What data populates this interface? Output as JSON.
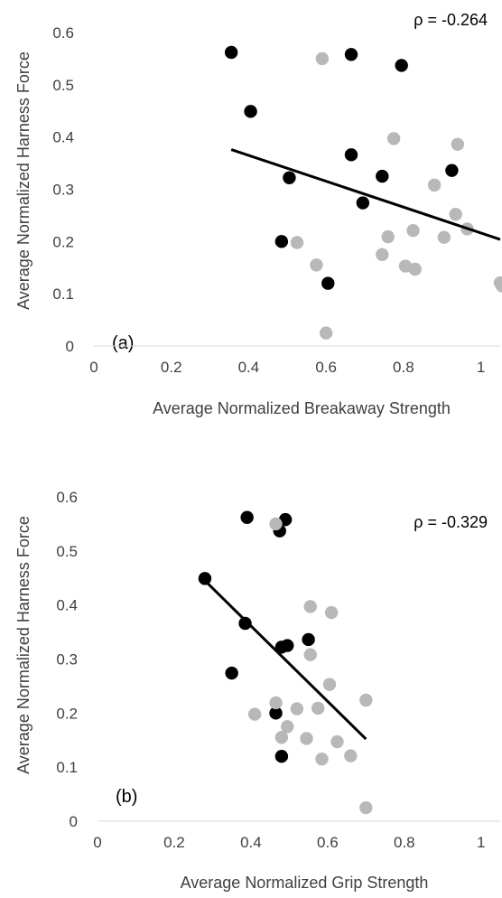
{
  "colors": {
    "group_black": "#000000",
    "group_gray": "#b8b8b8",
    "trendline": "#000000",
    "axis": "#d9d9d9"
  },
  "chart_data": [
    {
      "type": "scatter",
      "panel_label": "(a)",
      "annotation": "ρ = -0.264",
      "xlabel": "Average Normalized Breakaway Strength",
      "ylabel": "Average Normalized Harness Force",
      "xlim": [
        0,
        1.05
      ],
      "ylim": [
        0,
        0.6
      ],
      "xticks": [
        "0",
        "0.2",
        "0.4",
        "0.6",
        "0.8",
        "1"
      ],
      "yticks": [
        "0",
        "0.1",
        "0.2",
        "0.3",
        "0.4",
        "0.5",
        "0.6"
      ],
      "grid": false,
      "series": [
        {
          "color": "#000000",
          "points": [
            [
              0.355,
              0.562
            ],
            [
              0.405,
              0.449
            ],
            [
              0.505,
              0.322
            ],
            [
              0.485,
              0.2
            ],
            [
              0.605,
              0.12
            ],
            [
              0.665,
              0.558
            ],
            [
              0.665,
              0.366
            ],
            [
              0.695,
              0.274
            ],
            [
              0.745,
              0.325
            ],
            [
              0.795,
              0.537
            ],
            [
              0.925,
              0.336
            ]
          ]
        },
        {
          "color": "#b8b8b8",
          "points": [
            [
              0.59,
              0.55
            ],
            [
              0.525,
              0.198
            ],
            [
              0.575,
              0.155
            ],
            [
              0.6,
              0.025
            ],
            [
              0.76,
              0.209
            ],
            [
              0.775,
              0.397
            ],
            [
              0.745,
              0.175
            ],
            [
              0.805,
              0.153
            ],
            [
              0.825,
              0.221
            ],
            [
              0.83,
              0.147
            ],
            [
              0.88,
              0.308
            ],
            [
              0.905,
              0.208
            ],
            [
              0.935,
              0.252
            ],
            [
              0.94,
              0.386
            ],
            [
              0.965,
              0.224
            ],
            [
              1.05,
              0.121
            ],
            [
              1.055,
              0.115
            ]
          ]
        }
      ],
      "trendline": {
        "x": [
          0.355,
          1.05
        ],
        "y": [
          0.376,
          0.204
        ]
      }
    },
    {
      "type": "scatter",
      "panel_label": "(b)",
      "annotation": "ρ = -0.329",
      "xlabel": "Average Normalized Grip Strength",
      "ylabel": "Average Normalized Harness Force",
      "xlim": [
        0,
        1.05
      ],
      "ylim": [
        0,
        0.6
      ],
      "xticks": [
        "0",
        "0.2",
        "0.4",
        "0.6",
        "0.8",
        "1"
      ],
      "yticks": [
        "0",
        "0.1",
        "0.2",
        "0.3",
        "0.4",
        "0.5",
        "0.6"
      ],
      "grid": false,
      "series": [
        {
          "color": "#000000",
          "points": [
            [
              0.28,
              0.449
            ],
            [
              0.39,
              0.562
            ],
            [
              0.385,
              0.366
            ],
            [
              0.35,
              0.274
            ],
            [
              0.475,
              0.537
            ],
            [
              0.49,
              0.558
            ],
            [
              0.48,
              0.322
            ],
            [
              0.495,
              0.325
            ],
            [
              0.55,
              0.336
            ],
            [
              0.465,
              0.2
            ],
            [
              0.48,
              0.12
            ]
          ]
        },
        {
          "color": "#b8b8b8",
          "points": [
            [
              0.465,
              0.55
            ],
            [
              0.41,
              0.198
            ],
            [
              0.465,
              0.219
            ],
            [
              0.48,
              0.155
            ],
            [
              0.495,
              0.175
            ],
            [
              0.52,
              0.208
            ],
            [
              0.545,
              0.153
            ],
            [
              0.555,
              0.397
            ],
            [
              0.555,
              0.308
            ],
            [
              0.575,
              0.209
            ],
            [
              0.585,
              0.115
            ],
            [
              0.605,
              0.253
            ],
            [
              0.61,
              0.386
            ],
            [
              0.625,
              0.147
            ],
            [
              0.66,
              0.121
            ],
            [
              0.7,
              0.224
            ],
            [
              0.7,
              0.025
            ]
          ]
        }
      ],
      "trendline": {
        "x": [
          0.28,
          0.7
        ],
        "y": [
          0.445,
          0.152
        ]
      }
    }
  ]
}
